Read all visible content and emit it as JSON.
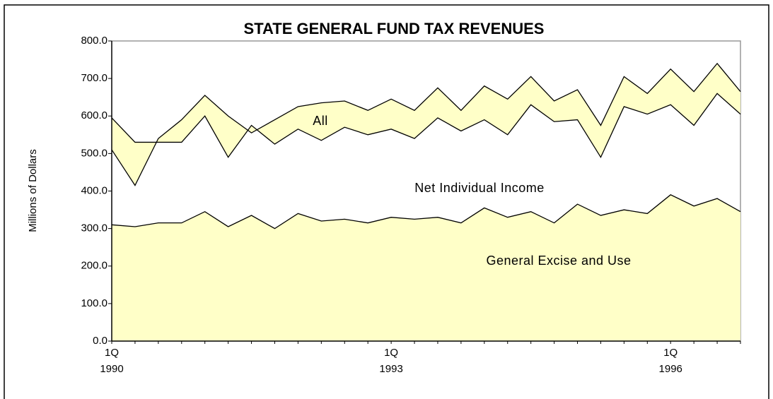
{
  "chart_data": {
    "type": "area",
    "title": "STATE GENERAL FUND TAX REVENUES",
    "y_label": "Millions of Dollars",
    "categories": [
      "1Q",
      null,
      null,
      null,
      null,
      null,
      null,
      null,
      null,
      null,
      null,
      null,
      "1Q",
      null,
      null,
      null,
      null,
      null,
      null,
      null,
      null,
      null,
      null,
      null,
      "1Q",
      null,
      null,
      null
    ],
    "years": [
      "1990",
      null,
      null,
      null,
      null,
      null,
      null,
      null,
      null,
      null,
      null,
      null,
      "1993",
      null,
      null,
      null,
      null,
      null,
      null,
      null,
      null,
      null,
      null,
      null,
      "1996",
      null,
      null,
      null
    ],
    "series": [
      {
        "name": "All",
        "color": "#ffffc8",
        "values": [
          595,
          530,
          530,
          530,
          600,
          490,
          575,
          525,
          565,
          535,
          570,
          550,
          565,
          540,
          595,
          560,
          590,
          550,
          630,
          585,
          590,
          490,
          625,
          605,
          630,
          575,
          660,
          605
        ]
      },
      {
        "name": "Net Individual Income",
        "color": "#ffffc8",
        "values": [
          510,
          415,
          540,
          590,
          655,
          600,
          555,
          590,
          625,
          635,
          640,
          615,
          645,
          615,
          675,
          615,
          680,
          645,
          705,
          640,
          670,
          575,
          705,
          660,
          725,
          665,
          740,
          665
        ]
      },
      {
        "name": "General Excise and Use",
        "color": "#ffffc8",
        "values": [
          310,
          305,
          315,
          315,
          345,
          305,
          335,
          300,
          340,
          320,
          325,
          315,
          330,
          325,
          330,
          315,
          355,
          330,
          345,
          315,
          365,
          335,
          350,
          340,
          390,
          360,
          380,
          345
        ]
      }
    ],
    "ylim": [
      0,
      800
    ],
    "yticks": [
      {
        "value": 0,
        "label": "0.0"
      },
      {
        "value": 100,
        "label": "100.0"
      },
      {
        "value": 200,
        "label": "200.0"
      },
      {
        "value": 300,
        "label": "300.0"
      },
      {
        "value": 400,
        "label": "400.0"
      },
      {
        "value": 500,
        "label": "500.0"
      },
      {
        "value": 600,
        "label": "600.0"
      },
      {
        "value": 700,
        "label": "700.0"
      },
      {
        "value": 800,
        "label": "800.0"
      }
    ],
    "grid": false
  }
}
